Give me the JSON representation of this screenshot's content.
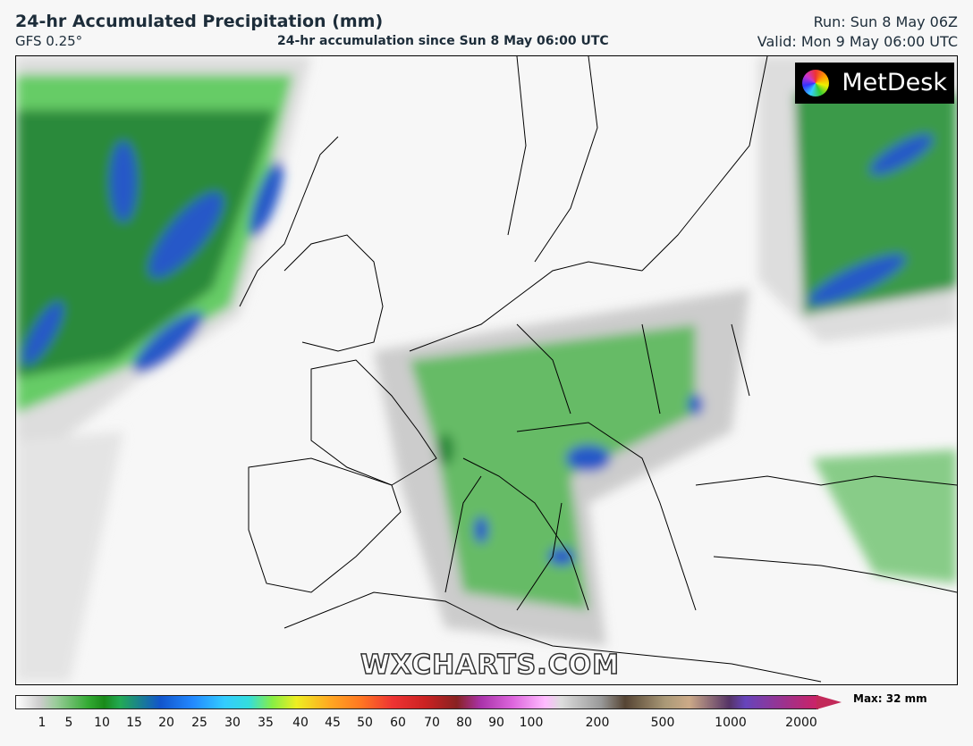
{
  "header": {
    "title": "24-hr Accumulated Precipitation (mm)",
    "model": "GFS 0.25°",
    "subtitle": "24-hr accumulation since Sun 8 May 06:00 UTC",
    "run": "Run: Sun 8 May 06Z",
    "valid": "Valid: Mon 9 May 06:00 UTC"
  },
  "logo": "MetDesk",
  "watermark": "WXCHARTS.COM",
  "colorbar": {
    "ticks": [
      1,
      5,
      10,
      15,
      20,
      25,
      30,
      35,
      40,
      45,
      50,
      60,
      70,
      80,
      90,
      100,
      200,
      500,
      1000,
      2000
    ],
    "max_label": "Max: 32 mm"
  }
}
